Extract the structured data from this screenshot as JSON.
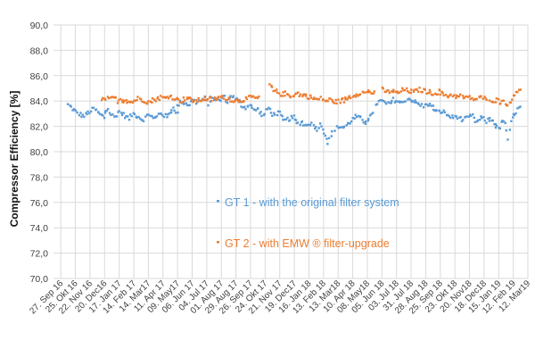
{
  "chart_data": {
    "type": "scatter",
    "ylabel": "Compressor Efficiency [%]",
    "xlabel": "",
    "title": "",
    "ylim": [
      70,
      90
    ],
    "y_tick_labels": [
      "70,0",
      "72,0",
      "74,0",
      "76,0",
      "78,0",
      "80,0",
      "82,0",
      "84,0",
      "86,0",
      "88,0",
      "90,0"
    ],
    "x_tick_labels": [
      "27. Sep 16",
      "25. Okt 16",
      "22. Nov 16",
      "20. Dec16",
      "17. Jan 17",
      "14. Feb 17",
      "14. Mar17",
      "11. Apr 17",
      "09. May17",
      "06. Jun 17",
      "04. Jul 17",
      "01. Aug 17",
      "29. Aug 17",
      "26. Sep 17",
      "24. Okt 17",
      "21. Nov 17",
      "19. Dec17",
      "16. Jan 18",
      "13. Feb 18",
      "13. Mar18",
      "10. Apr 18",
      "08. May18",
      "05. Jun 18",
      "03. Jul 18",
      "31. Jul 18",
      "28. Aug 18",
      "25. Sep 18",
      "23. Okt 18",
      "20. Nov18",
      "18. Dec18",
      "15. Jan 19",
      "12. Feb 19",
      "12. Mar19"
    ],
    "grid": true,
    "legend_position": "inside-lower-center",
    "series": [
      {
        "name": "GT 1 - with the original filter system",
        "color": "#5b9bd5",
        "segments": [
          {
            "x_start": 0.5,
            "x_end": 3.0,
            "values": [
              83.7,
              83.3,
              83.0,
              82.8,
              83.1,
              83.4,
              83.0,
              82.7
            ]
          },
          {
            "x_start": 3.0,
            "x_end": 8.0,
            "values": [
              83.1,
              83.4,
              82.9,
              82.7,
              83.2,
              83.0,
              82.8,
              82.6,
              83.0,
              82.9,
              82.7,
              82.5,
              82.8,
              83.0,
              82.6,
              82.7,
              83.1,
              82.9,
              82.7,
              83.2,
              83.5,
              83.0
            ]
          },
          {
            "x_start": 8.0,
            "x_end": 13.5,
            "values": [
              83.6,
              84.0,
              83.8,
              83.7,
              84.1,
              83.9,
              84.0,
              84.2,
              83.8,
              84.3,
              84.1,
              84.0,
              84.4,
              83.9,
              84.5,
              84.2,
              84.0,
              83.6,
              83.5,
              83.8,
              83.2,
              83.4
            ]
          },
          {
            "x_start": 13.5,
            "x_end": 16.0,
            "values": [
              83.3,
              82.8,
              83.5,
              82.9,
              83.1,
              82.4,
              82.6,
              82.7
            ]
          },
          {
            "x_start": 16.0,
            "x_end": 18.6,
            "values": [
              82.5,
              82.2,
              82.4,
              82.0,
              82.3,
              82.1,
              81.8,
              82.2,
              81.5,
              80.7,
              81.5
            ]
          },
          {
            "x_start": 18.8,
            "x_end": 21.4,
            "values": [
              81.8,
              82.0,
              81.9,
              82.2,
              82.5,
              82.8,
              82.6,
              82.3,
              82.7,
              82.9
            ]
          },
          {
            "x_start": 21.6,
            "x_end": 25.5,
            "values": [
              83.8,
              84.0,
              83.9,
              83.7,
              84.1,
              84.0,
              83.8,
              84.2,
              84.1,
              83.9,
              83.7,
              83.6,
              83.8,
              83.5
            ]
          },
          {
            "x_start": 25.5,
            "x_end": 29.8,
            "values": [
              83.4,
              83.1,
              83.2,
              82.9,
              82.7,
              82.8,
              82.5,
              82.6,
              82.9,
              82.3,
              82.7,
              82.4,
              82.6,
              82.2
            ]
          },
          {
            "x_start": 29.8,
            "x_end": 31.5,
            "values": [
              82.0,
              81.8,
              82.3,
              82.5,
              80.8,
              82.6,
              82.9,
              83.3,
              83.5
            ]
          }
        ]
      },
      {
        "name": "GT 2 - with EMW ® filter-upgrade",
        "color": "#ed7d31",
        "segments": [
          {
            "x_start": 2.8,
            "x_end": 4.2,
            "values": [
              84.0,
              84.2,
              84.1,
              84.3,
              84.0,
              84.2
            ]
          },
          {
            "x_start": 4.2,
            "x_end": 8.8,
            "values": [
              84.0,
              84.1,
              83.9,
              84.0,
              84.2,
              84.1,
              84.0,
              83.9,
              84.1,
              84.2,
              84.3,
              84.2,
              84.4,
              84.3,
              84.1,
              84.0,
              84.2,
              84.3
            ]
          },
          {
            "x_start": 8.8,
            "x_end": 13.6,
            "values": [
              84.1,
              84.0,
              84.2,
              84.1,
              84.3,
              84.2,
              84.0,
              84.1,
              84.3,
              84.2
            ]
          },
          {
            "x_start": 14.3,
            "x_end": 16.8,
            "values": [
              85.3,
              84.8,
              84.7,
              84.5,
              84.6,
              84.4,
              84.5,
              84.6,
              84.4,
              84.5
            ]
          },
          {
            "x_start": 16.8,
            "x_end": 19.5,
            "values": [
              84.4,
              84.3,
              84.2,
              84.1,
              84.2,
              84.0,
              84.1,
              84.0,
              83.9,
              84.1,
              84.0
            ]
          },
          {
            "x_start": 19.5,
            "x_end": 21.5,
            "values": [
              84.2,
              84.3,
              84.4,
              84.5,
              84.6,
              84.7,
              84.6,
              84.8,
              84.7,
              84.6
            ]
          },
          {
            "x_start": 22.0,
            "x_end": 26.0,
            "values": [
              84.9,
              84.7,
              84.8,
              84.6,
              84.9,
              84.8,
              84.7,
              84.9,
              84.8,
              84.7,
              84.6,
              84.8
            ]
          },
          {
            "x_start": 26.0,
            "x_end": 29.2,
            "values": [
              84.6,
              84.5,
              84.4,
              84.5,
              84.3,
              84.4,
              84.2,
              84.3,
              84.1,
              84.2,
              84.3,
              84.0
            ]
          },
          {
            "x_start": 29.4,
            "x_end": 31.5,
            "values": [
              84.2,
              84.0,
              84.1,
              83.9,
              84.0,
              83.8,
              83.7,
              84.5,
              84.8,
              85.0
            ]
          }
        ]
      }
    ]
  }
}
